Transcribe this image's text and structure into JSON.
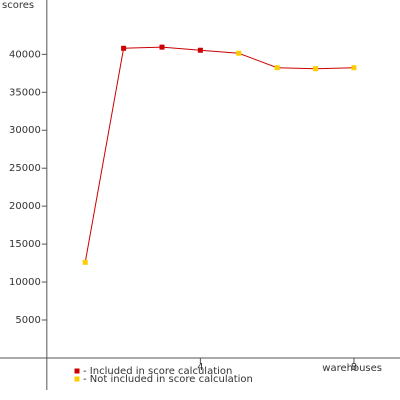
{
  "chart_data": {
    "type": "line",
    "y_label": "scores",
    "x_label": "warehouses",
    "x": [
      1,
      2,
      3,
      4,
      5,
      6,
      7,
      8
    ],
    "values": [
      12600,
      40800,
      40950,
      40540,
      40140,
      38240,
      38110,
      38240
    ],
    "point_colors": [
      "#ffcc00",
      "#cc0000",
      "#cc0000",
      "#cc0000",
      "#ffcc00",
      "#ffcc00",
      "#ffcc00",
      "#ffcc00"
    ],
    "line_color": "#cc0000",
    "legend": [
      {
        "label": "- Included in score calculation",
        "color": "#cc0000"
      },
      {
        "label": "- Not included in score calculation",
        "color": "#ffcc00"
      }
    ],
    "xlim": [
      -1.22,
      9.2
    ],
    "ylim": [
      -5540,
      47160
    ],
    "xticks": [
      4,
      8
    ],
    "yticks": [
      5000,
      10000,
      15000,
      20000,
      25000,
      30000,
      35000,
      40000
    ]
  }
}
